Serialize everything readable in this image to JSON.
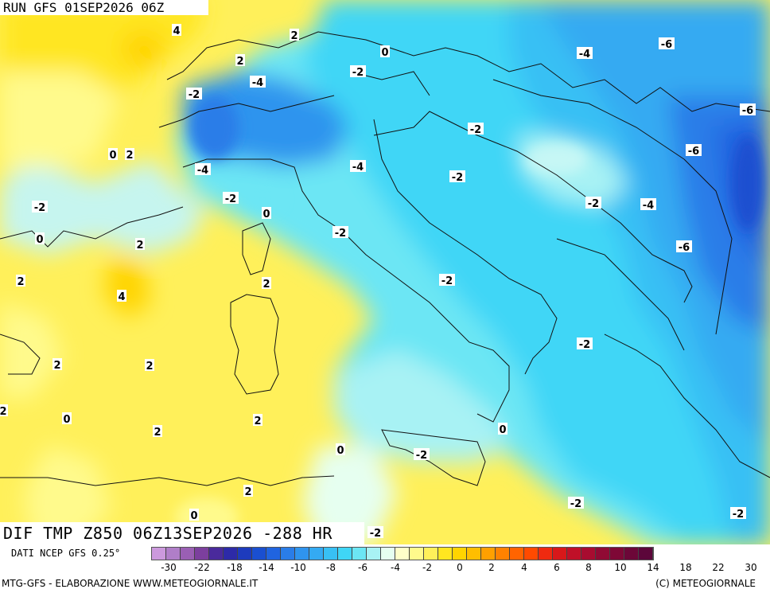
{
  "header": {
    "run": "RUN GFS 01SEP2026 06Z"
  },
  "footer_title": "DIF TMP Z850 06Z13SEP2026 -288 HR",
  "source": "DATI NCEP GFS 0.25°",
  "credit_left": "MTG-GFS - ELABORAZIONE WWW.METEOGIORNALE.IT",
  "credit_right": "(C) METEOGIORNALE",
  "map_labels": [
    "4",
    "2",
    "2",
    "0",
    "-2",
    "-4",
    "-2",
    "-4",
    "-6",
    "-6",
    "-2",
    "-2",
    "-6",
    "0",
    "2",
    "-4",
    "-4",
    "-2",
    "-2",
    "-4",
    "-2",
    "-6",
    "-2",
    "0",
    "-2",
    "0",
    "2",
    "2",
    "4",
    "2",
    "-2",
    "2",
    "2",
    "2",
    "0",
    "2",
    "-2",
    "2",
    "0",
    "-2",
    "0",
    "-2",
    "2",
    "0",
    "-2"
  ],
  "colorbar": {
    "colors": [
      "#cc99dd",
      "#b07ec8",
      "#9a5fb4",
      "#7c3f9e",
      "#4a2a9c",
      "#2d2aa8",
      "#1d3bbd",
      "#1a4fd0",
      "#2064e0",
      "#2a7de8",
      "#2f94ee",
      "#34aaf2",
      "#38c0f4",
      "#3fd6f6",
      "#6ce6f4",
      "#a8f2f4",
      "#e6fff0",
      "#ffffc8",
      "#fffa8c",
      "#fff05a",
      "#ffe620",
      "#ffd400",
      "#ffbe00",
      "#ffa000",
      "#ff8200",
      "#ff6400",
      "#ff4a00",
      "#ef2a10",
      "#d8181a",
      "#c01028",
      "#a80c30",
      "#900a34",
      "#7e0836",
      "#6c0738",
      "#5c063a"
    ],
    "ticks": [
      "-30",
      "-22",
      "-18",
      "-14",
      "-10",
      "-8",
      "-6",
      "-4",
      "-2",
      "0",
      "2",
      "4",
      "6",
      "8",
      "10",
      "14",
      "18",
      "22",
      "30"
    ]
  }
}
